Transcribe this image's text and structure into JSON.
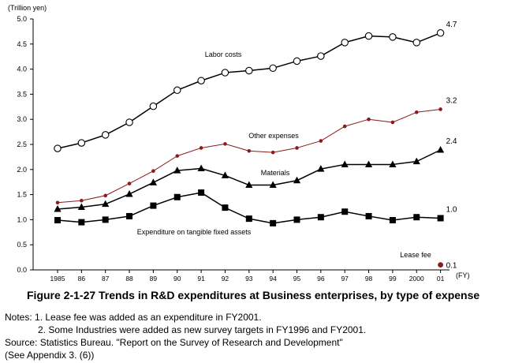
{
  "chart_data": {
    "type": "line",
    "title": "",
    "ylabel": "(Trillion yen)",
    "xlabel": "(FY)",
    "ylim": [
      0,
      5.0
    ],
    "yticks": [
      "0.0",
      "0.5",
      "1.0",
      "1.5",
      "2.0",
      "2.5",
      "3.0",
      "3.5",
      "4.0",
      "4.5",
      "5.0"
    ],
    "categories": [
      "1985",
      "86",
      "87",
      "88",
      "89",
      "90",
      "91",
      "92",
      "93",
      "94",
      "95",
      "96",
      "97",
      "98",
      "99",
      "2000",
      "01"
    ],
    "series": [
      {
        "name": "Labor costs",
        "marker": "open-circle",
        "color": "#000000",
        "end_label": "4.7",
        "values": [
          2.42,
          2.53,
          2.69,
          2.94,
          3.26,
          3.58,
          3.77,
          3.93,
          3.97,
          4.02,
          4.16,
          4.26,
          4.53,
          4.66,
          4.64,
          4.53,
          4.72
        ]
      },
      {
        "name": "Other expenses",
        "marker": "small-dot",
        "color": "#8b1a1a",
        "end_label": "3.2",
        "values": [
          1.34,
          1.38,
          1.48,
          1.72,
          1.97,
          2.27,
          2.43,
          2.51,
          2.37,
          2.34,
          2.43,
          2.57,
          2.86,
          3.0,
          2.94,
          3.14,
          3.2
        ]
      },
      {
        "name": "Materials",
        "marker": "triangle",
        "color": "#000000",
        "end_label": "2.4",
        "values": [
          1.21,
          1.25,
          1.31,
          1.51,
          1.74,
          1.98,
          2.02,
          1.88,
          1.69,
          1.69,
          1.78,
          2.01,
          2.1,
          2.1,
          2.1,
          2.16,
          2.39
        ]
      },
      {
        "name": "Expenditure on tangible fixed assets",
        "marker": "square",
        "color": "#000000",
        "end_label": "1.0",
        "values": [
          0.99,
          0.95,
          1.0,
          1.07,
          1.28,
          1.45,
          1.54,
          1.24,
          1.02,
          0.93,
          1.0,
          1.05,
          1.16,
          1.07,
          0.99,
          1.05,
          1.03
        ]
      },
      {
        "name": "Lease fee",
        "marker": "big-dot",
        "color": "#8b1a1a",
        "end_label": "0.1",
        "values": [
          null,
          null,
          null,
          null,
          null,
          null,
          null,
          null,
          null,
          null,
          null,
          null,
          null,
          null,
          null,
          null,
          0.1
        ]
      }
    ]
  },
  "caption": "Figure 2-1-27 Trends in R&D expenditures at Business enterprises, by type of expense",
  "notes": {
    "note1": "Notes: 1. Lease fee was added as an expenditure in FY2001.",
    "note2": "2. Some Industries were added as new survey targets in FY1996 and FY2001.",
    "source": "Source: Statistics Bureau. \"Report on the Survey of Research and Development\"",
    "appendix": "(See Appendix 3. (6))"
  }
}
